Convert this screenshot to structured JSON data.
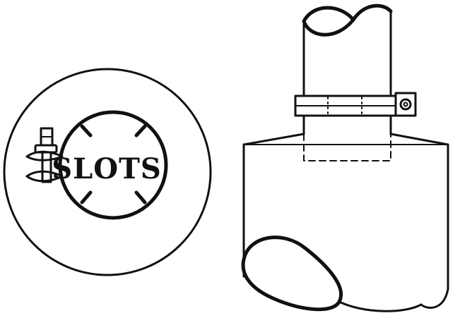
{
  "diagram": {
    "top_view": {
      "label": "SLOTS"
    }
  },
  "colors": {
    "ink": "#111111",
    "background": "#ffffff"
  }
}
